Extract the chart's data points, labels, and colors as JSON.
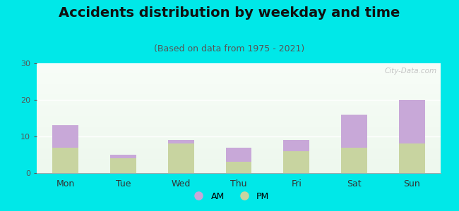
{
  "categories": [
    "Mon",
    "Tue",
    "Wed",
    "Thu",
    "Fri",
    "Sat",
    "Sun"
  ],
  "pm_values": [
    7,
    4,
    8,
    3,
    6,
    7,
    8
  ],
  "am_values": [
    6,
    1,
    1,
    4,
    3,
    9,
    12
  ],
  "am_color": "#c8a8d8",
  "pm_color": "#c8d4a0",
  "title": "Accidents distribution by weekday and time",
  "subtitle": "(Based on data from 1975 - 2021)",
  "ylim": [
    0,
    30
  ],
  "yticks": [
    0,
    10,
    20,
    30
  ],
  "bg_color": "#00e8e8",
  "watermark": "City-Data.com",
  "bar_width": 0.45,
  "title_fontsize": 14,
  "subtitle_fontsize": 9
}
